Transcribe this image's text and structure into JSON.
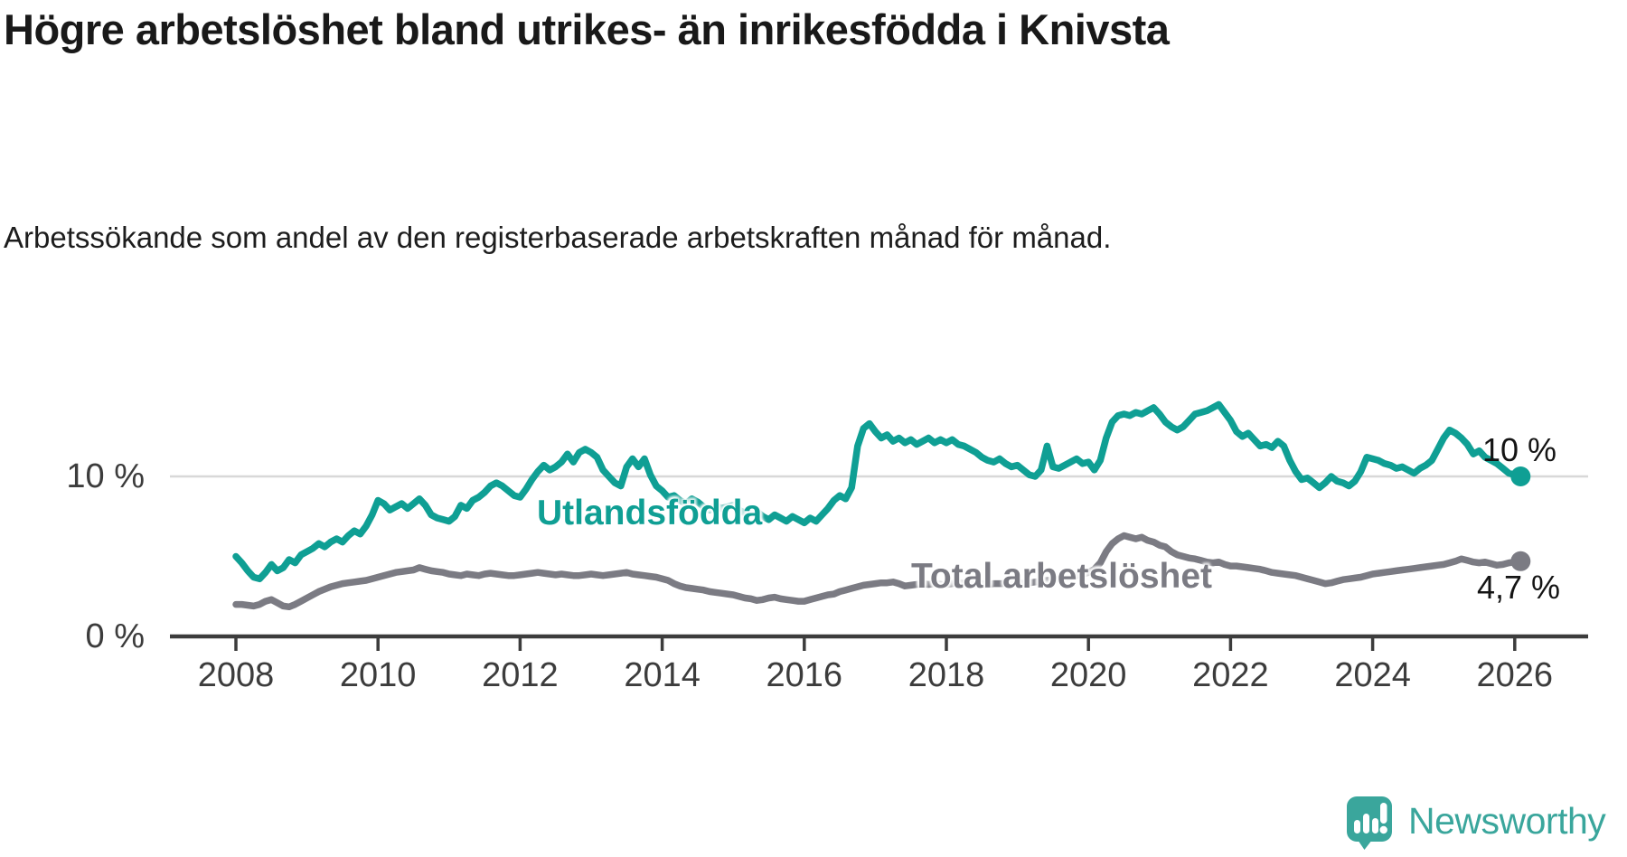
{
  "title": "Högre arbetslöshet bland utrikes- än inrikesfödda i Knivsta",
  "subtitle": "Arbetssökande som andel av den registerbaserade arbetskraften månad för månad.",
  "colors": {
    "utlandsfodda_teal": "#0f9f94",
    "total_gray": "#7b7b83",
    "grid": "#d8d8d8",
    "axis": "#3c3c3c",
    "title_text": "#191919",
    "end_label_text": "#141414",
    "logo_teal": "#3aa69c"
  },
  "branding": {
    "name": "Newsworthy"
  },
  "chart_data": {
    "type": "line",
    "title": "Högre arbetslöshet bland utrikes- än inrikesfödda i Knivsta",
    "subtitle": "Arbetssökande som andel av den registerbaserade arbetskraften månad för månad.",
    "frequency": "monthly",
    "x_start": "2008-01",
    "x_end": "2026-02",
    "grid": "single horizontal gridline at 10 %",
    "legend_position": "inline labels on lines, end-value labels at right",
    "x_axis": {
      "tick_years": [
        2008,
        2010,
        2012,
        2014,
        2016,
        2018,
        2020,
        2022,
        2024,
        2026
      ]
    },
    "y_axis": {
      "unit": "%",
      "ticks": [
        {
          "value": 0,
          "label": "0 %"
        },
        {
          "value": 10,
          "label": "10 %"
        }
      ],
      "domain": [
        0,
        18.3
      ]
    },
    "series": [
      {
        "id": "utlandsfodda",
        "name": "Utlandsfödda",
        "color": "#0f9f94",
        "end_label": "10 %",
        "end_value": 10.0,
        "values": [
          5.0,
          4.6,
          4.1,
          3.7,
          3.6,
          4.0,
          4.5,
          4.1,
          4.3,
          4.8,
          4.6,
          5.1,
          5.3,
          5.5,
          5.8,
          5.6,
          5.9,
          6.1,
          5.9,
          6.3,
          6.6,
          6.4,
          6.9,
          7.6,
          8.5,
          8.3,
          7.9,
          8.1,
          8.3,
          8.0,
          8.3,
          8.6,
          8.2,
          7.6,
          7.4,
          7.3,
          7.2,
          7.5,
          8.2,
          8.0,
          8.5,
          8.7,
          9.0,
          9.4,
          9.6,
          9.4,
          9.1,
          8.8,
          8.7,
          9.2,
          9.8,
          10.3,
          10.7,
          10.4,
          10.6,
          10.9,
          11.4,
          10.9,
          11.5,
          11.7,
          11.5,
          11.2,
          10.4,
          10.0,
          9.6,
          9.4,
          10.6,
          11.1,
          10.6,
          11.1,
          10.1,
          9.4,
          9.1,
          8.7,
          8.8,
          8.5,
          8.3,
          8.6,
          8.4,
          8.1,
          7.9,
          8.2,
          8.0,
          8.1,
          8.2,
          7.9,
          7.7,
          8.0,
          7.8,
          7.5,
          7.3,
          7.6,
          7.4,
          7.2,
          7.5,
          7.3,
          7.1,
          7.4,
          7.2,
          7.6,
          8.0,
          8.5,
          8.8,
          8.6,
          9.3,
          11.9,
          13.0,
          13.3,
          12.8,
          12.4,
          12.6,
          12.2,
          12.4,
          12.1,
          12.3,
          12.0,
          12.2,
          12.4,
          12.1,
          12.3,
          12.1,
          12.3,
          12.0,
          11.9,
          11.7,
          11.5,
          11.2,
          11.0,
          10.9,
          11.1,
          10.8,
          10.6,
          10.7,
          10.4,
          10.1,
          10.0,
          10.4,
          11.9,
          10.6,
          10.5,
          10.7,
          10.9,
          11.1,
          10.8,
          10.9,
          10.4,
          11.0,
          12.4,
          13.4,
          13.8,
          13.9,
          13.8,
          14.0,
          13.9,
          14.1,
          14.3,
          13.9,
          13.4,
          13.1,
          12.9,
          13.1,
          13.5,
          13.9,
          14.0,
          14.1,
          14.3,
          14.5,
          14.0,
          13.5,
          12.8,
          12.5,
          12.7,
          12.3,
          11.9,
          12.0,
          11.8,
          12.2,
          11.9,
          11.0,
          10.3,
          9.8,
          9.9,
          9.6,
          9.3,
          9.6,
          10.0,
          9.7,
          9.6,
          9.4,
          9.7,
          10.3,
          11.2,
          11.1,
          11.0,
          10.8,
          10.7,
          10.5,
          10.6,
          10.4,
          10.2,
          10.5,
          10.7,
          11.0,
          11.7,
          12.4,
          12.9,
          12.7,
          12.4,
          12.0,
          11.4,
          11.6,
          11.2,
          11.0,
          10.8,
          10.5,
          10.2,
          10.1,
          10.0
        ]
      },
      {
        "id": "total",
        "name": "Total arbetslöshet",
        "color": "#7b7b83",
        "end_label": "4,7 %",
        "end_value": 4.7,
        "values": [
          2.0,
          2.0,
          1.95,
          1.9,
          2.0,
          2.2,
          2.3,
          2.1,
          1.9,
          1.85,
          2.0,
          2.2,
          2.4,
          2.6,
          2.8,
          2.95,
          3.1,
          3.2,
          3.3,
          3.35,
          3.4,
          3.45,
          3.5,
          3.6,
          3.7,
          3.8,
          3.9,
          4.0,
          4.05,
          4.1,
          4.15,
          4.3,
          4.2,
          4.1,
          4.05,
          4.0,
          3.9,
          3.85,
          3.8,
          3.9,
          3.85,
          3.8,
          3.9,
          3.95,
          3.9,
          3.85,
          3.8,
          3.8,
          3.85,
          3.9,
          3.95,
          4.0,
          3.95,
          3.9,
          3.85,
          3.9,
          3.85,
          3.8,
          3.8,
          3.85,
          3.9,
          3.85,
          3.8,
          3.85,
          3.9,
          3.95,
          4.0,
          3.9,
          3.85,
          3.8,
          3.75,
          3.7,
          3.6,
          3.5,
          3.3,
          3.15,
          3.05,
          3.0,
          2.95,
          2.9,
          2.8,
          2.75,
          2.7,
          2.65,
          2.6,
          2.5,
          2.4,
          2.35,
          2.25,
          2.3,
          2.4,
          2.45,
          2.35,
          2.3,
          2.25,
          2.2,
          2.2,
          2.3,
          2.4,
          2.5,
          2.6,
          2.65,
          2.8,
          2.9,
          3.0,
          3.1,
          3.2,
          3.25,
          3.3,
          3.35,
          3.35,
          3.4,
          3.3,
          3.15,
          3.2,
          3.25,
          3.3,
          3.25,
          3.3,
          3.25,
          3.25,
          3.3,
          3.35,
          3.3,
          3.3,
          3.25,
          3.3,
          3.25,
          3.3,
          3.3,
          3.3,
          3.35,
          3.35,
          3.3,
          3.35,
          3.4,
          3.45,
          3.5,
          3.55,
          3.6,
          3.65,
          3.7,
          3.8,
          3.9,
          4.0,
          4.2,
          4.6,
          5.3,
          5.8,
          6.1,
          6.3,
          6.2,
          6.1,
          6.2,
          6.0,
          5.9,
          5.7,
          5.6,
          5.3,
          5.1,
          5.0,
          4.9,
          4.85,
          4.75,
          4.65,
          4.6,
          4.65,
          4.5,
          4.4,
          4.4,
          4.35,
          4.3,
          4.25,
          4.2,
          4.1,
          4.0,
          3.95,
          3.9,
          3.85,
          3.8,
          3.7,
          3.6,
          3.5,
          3.4,
          3.3,
          3.35,
          3.45,
          3.55,
          3.6,
          3.65,
          3.7,
          3.8,
          3.9,
          3.95,
          4.0,
          4.05,
          4.1,
          4.15,
          4.2,
          4.25,
          4.3,
          4.35,
          4.4,
          4.45,
          4.5,
          4.6,
          4.7,
          4.85,
          4.75,
          4.65,
          4.6,
          4.65,
          4.55,
          4.45,
          4.5,
          4.6,
          4.65,
          4.7
        ]
      }
    ]
  }
}
